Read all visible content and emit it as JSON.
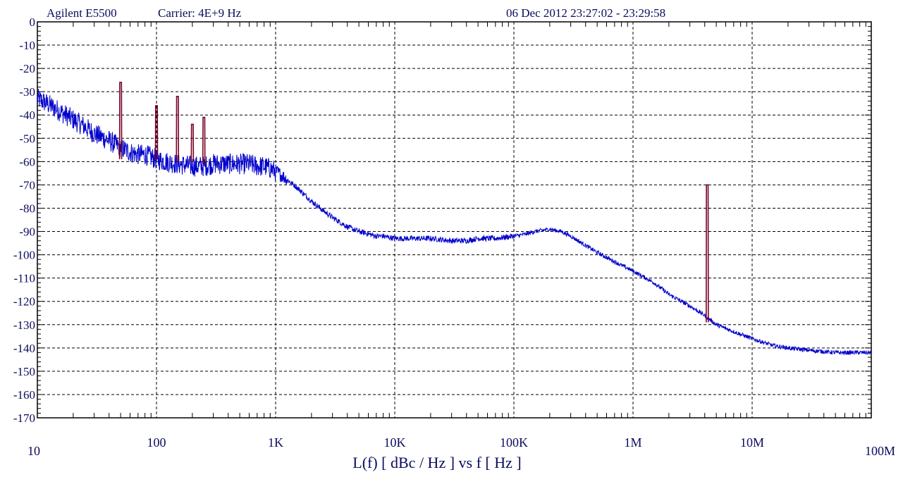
{
  "header": {
    "instrument": "Agilent E5500",
    "carrier": "Carrier: 4E+9 Hz",
    "datetime": "06 Dec 2012  23:27:02 - 23:29:58"
  },
  "chart_data": {
    "type": "line",
    "title": "",
    "xlabel": "L(f)  [ dBc / Hz ]  vs  f  [ Hz ]",
    "ylabel": "",
    "x_scale": "log",
    "xlim": [
      10,
      100000000
    ],
    "ylim": [
      -170,
      0
    ],
    "grid": true,
    "x_ticks": [
      {
        "value": 10,
        "label": "10"
      },
      {
        "value": 100,
        "label": "100"
      },
      {
        "value": 1000,
        "label": "1K"
      },
      {
        "value": 10000,
        "label": "10K"
      },
      {
        "value": 100000,
        "label": "100K"
      },
      {
        "value": 1000000,
        "label": "1M"
      },
      {
        "value": 10000000,
        "label": "10M"
      },
      {
        "value": 100000000,
        "label": "100M"
      }
    ],
    "y_ticks": [
      {
        "value": 0,
        "label": "0"
      },
      {
        "value": -10,
        "label": "-10"
      },
      {
        "value": -20,
        "label": "-20"
      },
      {
        "value": -30,
        "label": "-30"
      },
      {
        "value": -40,
        "label": "-40"
      },
      {
        "value": -50,
        "label": "-50"
      },
      {
        "value": -60,
        "label": "-60"
      },
      {
        "value": -70,
        "label": "-70"
      },
      {
        "value": -80,
        "label": "-80"
      },
      {
        "value": -90,
        "label": "-90"
      },
      {
        "value": -100,
        "label": "-100"
      },
      {
        "value": -110,
        "label": "-110"
      },
      {
        "value": -120,
        "label": "-120"
      },
      {
        "value": -130,
        "label": "-130"
      },
      {
        "value": -140,
        "label": "-140"
      },
      {
        "value": -150,
        "label": "-150"
      },
      {
        "value": -160,
        "label": "-160"
      },
      {
        "value": -170,
        "label": "-170"
      }
    ],
    "series": [
      {
        "color": "#0000cc",
        "x": [
          10,
          12,
          15,
          20,
          25,
          30,
          40,
          50,
          60,
          70,
          80,
          100,
          120,
          150,
          200,
          250,
          300,
          400,
          500,
          600,
          700,
          800,
          900,
          1000,
          1200,
          1500,
          2000,
          2500,
          3000,
          4000,
          5000,
          6000,
          7000,
          8000,
          10000,
          15000,
          20000,
          30000,
          40000,
          50000,
          70000,
          100000,
          130000,
          150000,
          200000,
          250000,
          300000,
          400000,
          500000,
          700000,
          1000000,
          1500000,
          2000000,
          3000000,
          4000000,
          5000000,
          7000000,
          10000000,
          15000000,
          20000000,
          30000000,
          50000000,
          70000000,
          100000000
        ],
        "y": [
          -33,
          -35,
          -38,
          -42,
          -45,
          -48,
          -51,
          -54,
          -56,
          -57,
          -57,
          -59,
          -60,
          -61,
          -62,
          -62,
          -61,
          -61,
          -61,
          -61,
          -62,
          -62,
          -63,
          -64,
          -67,
          -71,
          -77,
          -81,
          -84,
          -88,
          -90,
          -91,
          -92,
          -92,
          -93,
          -93,
          -93,
          -94,
          -94,
          -93,
          -93,
          -92,
          -91,
          -90,
          -89,
          -90,
          -92,
          -96,
          -99,
          -103,
          -107,
          -112,
          -117,
          -122,
          -126,
          -130,
          -133,
          -136,
          -139,
          -140,
          -141,
          -142,
          -142,
          -142
        ]
      }
    ],
    "spurs": [
      {
        "color": "#7a0025",
        "x": 50,
        "base": -59,
        "peak": -26
      },
      {
        "color": "#7a0025",
        "x": 100,
        "base": -59,
        "peak": -36
      },
      {
        "color": "#7a0025",
        "x": 150,
        "base": -60,
        "peak": -32
      },
      {
        "color": "#7a0025",
        "x": 200,
        "base": -60,
        "peak": -44
      },
      {
        "color": "#7a0025",
        "x": 250,
        "base": -61,
        "peak": -41
      },
      {
        "color": "#7a0025",
        "x": 4200000,
        "base": -129,
        "peak": -70
      }
    ]
  }
}
